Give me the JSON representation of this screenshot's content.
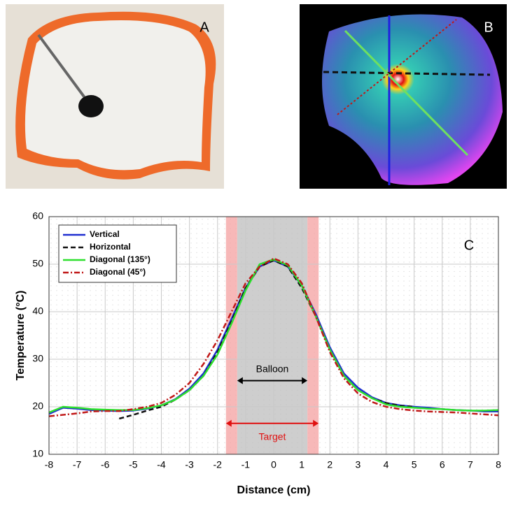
{
  "panels": {
    "a_label": "A",
    "b_label": "B"
  },
  "chart_data": {
    "type": "line",
    "panel_label": "C",
    "xlabel": "Distance (cm)",
    "ylabel": "Temperature (°C)",
    "xlim": [
      -8,
      8
    ],
    "ylim": [
      10,
      60
    ],
    "xticks": [
      -8,
      -7,
      -6,
      -5,
      -4,
      -3,
      -2,
      -1,
      0,
      1,
      2,
      3,
      4,
      5,
      6,
      7,
      8
    ],
    "yticks": [
      10,
      20,
      30,
      40,
      50,
      60
    ],
    "grid": true,
    "legend": "upper left",
    "x": [
      -8,
      -7.5,
      -7,
      -6.5,
      -6,
      -5.5,
      -5,
      -4.5,
      -4,
      -3.5,
      -3,
      -2.5,
      -2,
      -1.5,
      -1,
      -0.5,
      0,
      0.5,
      1,
      1.5,
      2,
      2.5,
      3,
      3.5,
      4,
      4.5,
      5,
      5.5,
      6,
      6.5,
      7,
      7.5,
      8
    ],
    "series": [
      {
        "name": "Vertical",
        "color": "#1f2fd0",
        "dash": "solid",
        "values": [
          18.5,
          19.8,
          19.6,
          19.3,
          19.2,
          19.1,
          19.2,
          19.6,
          20.3,
          21.6,
          23.8,
          27,
          32,
          38.5,
          45,
          49.5,
          50.8,
          49.5,
          45.5,
          39.5,
          32.5,
          27,
          24,
          22,
          20.8,
          20.3,
          20,
          19.8,
          19.5,
          19.3,
          19.2,
          19,
          19
        ]
      },
      {
        "name": "Horizontal",
        "color": "#111111",
        "dash": "dashed",
        "values": [
          null,
          null,
          null,
          null,
          null,
          17.5,
          18.3,
          19.2,
          20,
          21.5,
          23.5,
          26.5,
          31.5,
          38,
          45,
          49.5,
          50.8,
          49.5,
          45,
          39,
          32,
          26.5,
          23.5,
          21.8,
          20.8,
          20.2,
          20,
          null,
          null,
          null,
          null,
          null,
          null
        ]
      },
      {
        "name": "Diagonal (135°)",
        "color": "#2ee02e",
        "dash": "solid",
        "values": [
          18.8,
          20,
          19.8,
          19.5,
          19.4,
          19.3,
          19.3,
          19.7,
          20.3,
          21.5,
          23.5,
          26.5,
          31,
          37.5,
          44.5,
          50,
          51,
          49.8,
          45.5,
          39,
          32,
          26.5,
          23.5,
          21.8,
          20.5,
          20,
          19.8,
          19.6,
          19.5,
          19.3,
          19.2,
          19.2,
          19.3
        ]
      },
      {
        "name": "Diagonal (45°)",
        "color": "#c01818",
        "dash": "dashdot",
        "values": [
          18,
          18.3,
          18.6,
          19,
          19.1,
          19.1,
          19.5,
          20,
          20.8,
          22.5,
          25,
          29,
          34,
          40,
          46,
          49.5,
          51.2,
          50,
          46,
          39,
          31.5,
          26,
          22.8,
          21,
          20,
          19.5,
          19.2,
          19,
          18.9,
          18.8,
          18.6,
          18.4,
          18.2
        ]
      }
    ],
    "bands": [
      {
        "x": [
          -1.3,
          1.2
        ],
        "color": "#bdbdbd"
      },
      {
        "x": [
          -1.7,
          -1.3
        ],
        "color": "#f4a0a0"
      },
      {
        "x": [
          1.2,
          1.6
        ],
        "color": "#f4a0a0"
      }
    ],
    "annotations": [
      {
        "text": "Balloon",
        "x": [
          -1.3,
          1.2
        ],
        "y": 25.5,
        "color": "#000000"
      },
      {
        "text": "Target",
        "x": [
          -1.7,
          1.6
        ],
        "y": 16.5,
        "color": "#e01010"
      }
    ]
  }
}
